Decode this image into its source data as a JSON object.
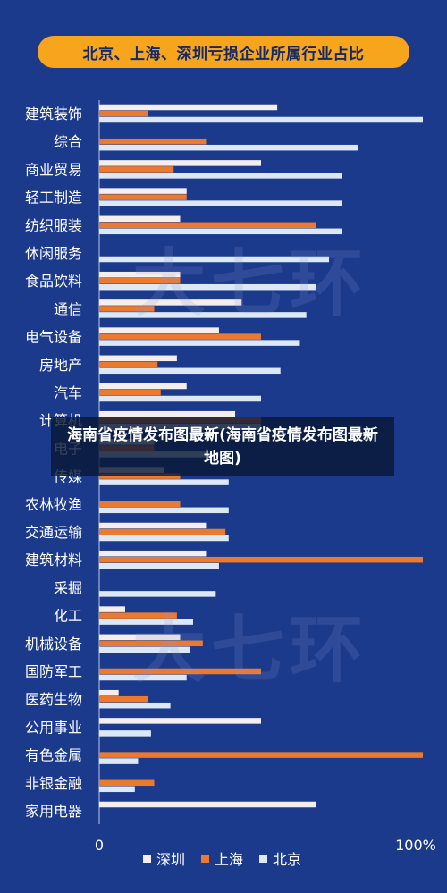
{
  "chart_data": {
    "type": "bar",
    "orientation": "horizontal",
    "title": "北京、上海、深圳亏损企业所属行业占比",
    "categories": [
      "建筑装饰",
      "综合",
      "商业贸易",
      "轻工制造",
      "纺织服装",
      "休闲服务",
      "食品饮料",
      "通信",
      "电气设备",
      "房地产",
      "汽车",
      "计算机",
      "电子",
      "传媒",
      "农林牧渔",
      "交通运输",
      "建筑材料",
      "采掘",
      "化工",
      "机械设备",
      "国防军工",
      "医药生物",
      "公用事业",
      "有色金属",
      "非银金融",
      "家用电器"
    ],
    "series": [
      {
        "name": "深圳",
        "color": "#f4eeee",
        "values": [
          55,
          0,
          50,
          27,
          25,
          0,
          25,
          44,
          37,
          24,
          27,
          42,
          17,
          20,
          0,
          33,
          33,
          0,
          8,
          25,
          0,
          6,
          50,
          0,
          0,
          67
        ]
      },
      {
        "name": "上海",
        "color": "#ec7a2e",
        "values": [
          15,
          33,
          23,
          27,
          67,
          0,
          25,
          17,
          50,
          18,
          19,
          50,
          17,
          25,
          25,
          39,
          100,
          0,
          24,
          32,
          50,
          15,
          0,
          100,
          17,
          0
        ]
      },
      {
        "name": "北京",
        "color": "#dce8f6",
        "values": [
          100,
          80,
          75,
          75,
          75,
          71,
          67,
          64,
          62,
          56,
          50,
          50,
          33,
          40,
          40,
          40,
          37,
          36,
          29,
          28,
          27,
          22,
          16,
          12,
          11,
          0
        ]
      }
    ],
    "xlim": [
      0,
      100
    ],
    "x_tick_labels": [
      "0",
      "100%"
    ],
    "legend": "bottom",
    "grid": false
  },
  "watermark": "大七环",
  "overlay_caption": "海南省疫情发布图最新(海南省疫情发布图最新地图)"
}
